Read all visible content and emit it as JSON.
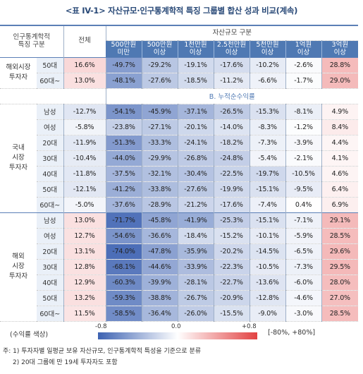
{
  "title": "<표 IV-1> 자산규모·인구통계학적 특징 그룹별 합산 성과 비교(계속)",
  "header": {
    "demo_group": "인구통계학적\n특징 구분",
    "total": "전체",
    "asset_group": "자산규모 구분",
    "cols": [
      "500만원\n미만",
      "500만원\n이상",
      "1천만원\n이상",
      "2.5천만원\n이상",
      "5천만원\n이상",
      "1억원\n이상",
      "3억원\n이상"
    ]
  },
  "top_group": {
    "label": "해외시장\n투자자",
    "rows": [
      {
        "age": "50대",
        "total": "16.6%",
        "vals": [
          "-49.7%",
          "-29.2%",
          "-19.1%",
          "-17.6%",
          "-10.2%",
          "-2.6%",
          "28.8%"
        ]
      },
      {
        "age": "60대~",
        "total": "13.0%",
        "vals": [
          "-48.1%",
          "-27.6%",
          "-18.5%",
          "-11.2%",
          "-6.6%",
          "-1.7%",
          "29.0%"
        ]
      }
    ]
  },
  "section_b_title": "B. 누적순수익률",
  "groups": [
    {
      "label": "국내\n시장\n투자자",
      "rows": [
        {
          "age": "남성",
          "total": "-12.7%",
          "vals": [
            "-54.1%",
            "-45.9%",
            "-37.1%",
            "-26.5%",
            "-15.3%",
            "-8.1%",
            "4.9%"
          ]
        },
        {
          "age": "여성",
          "total": "-5.8%",
          "vals": [
            "-23.8%",
            "-27.1%",
            "-20.1%",
            "-14.0%",
            "-8.3%",
            "-1.2%",
            "8.4%"
          ]
        },
        {
          "age": "20대",
          "total": "-11.9%",
          "vals": [
            "-51.3%",
            "-33.3%",
            "-24.1%",
            "-18.2%",
            "-7.3%",
            "-3.9%",
            "4.4%"
          ]
        },
        {
          "age": "30대",
          "total": "-10.4%",
          "vals": [
            "-44.0%",
            "-29.9%",
            "-26.8%",
            "-24.8%",
            "-5.4%",
            "-2.1%",
            "4.1%"
          ]
        },
        {
          "age": "40대",
          "total": "-11.8%",
          "vals": [
            "-37.5%",
            "-32.1%",
            "-30.4%",
            "-22.5%",
            "-19.7%",
            "-10.5%",
            "4.6%"
          ]
        },
        {
          "age": "50대",
          "total": "-12.1%",
          "vals": [
            "-41.2%",
            "-33.8%",
            "-27.6%",
            "-19.9%",
            "-15.1%",
            "-9.5%",
            "6.4%"
          ]
        },
        {
          "age": "60대~",
          "total": "-5.0%",
          "vals": [
            "-37.6%",
            "-28.9%",
            "-21.2%",
            "-17.6%",
            "-7.4%",
            "0.4%",
            "6.9%"
          ]
        }
      ]
    },
    {
      "label": "해외\n시장\n투자자",
      "rows": [
        {
          "age": "남성",
          "total": "13.0%",
          "vals": [
            "-71.7%",
            "-45.8%",
            "-41.9%",
            "-25.3%",
            "-15.1%",
            "-7.1%",
            "29.1%"
          ]
        },
        {
          "age": "여성",
          "total": "12.7%",
          "vals": [
            "-54.6%",
            "-36.6%",
            "-18.4%",
            "-15.2%",
            "-10.1%",
            "-5.9%",
            "28.5%"
          ]
        },
        {
          "age": "20대",
          "total": "13.1%",
          "vals": [
            "-74.0%",
            "-47.8%",
            "-35.9%",
            "-20.2%",
            "-14.5%",
            "-6.5%",
            "29.6%"
          ]
        },
        {
          "age": "30대",
          "total": "12.8%",
          "vals": [
            "-68.1%",
            "-44.6%",
            "-33.9%",
            "-22.3%",
            "-10.5%",
            "-7.3%",
            "29.5%"
          ]
        },
        {
          "age": "40대",
          "total": "12.9%",
          "vals": [
            "-60.3%",
            "-39.9%",
            "-28.1%",
            "-22.7%",
            "-13.6%",
            "-6.0%",
            "28.0%"
          ]
        },
        {
          "age": "50대",
          "total": "13.2%",
          "vals": [
            "-59.3%",
            "-38.8%",
            "-26.7%",
            "-20.9%",
            "-12.8%",
            "-4.6%",
            "27.0%"
          ]
        },
        {
          "age": "60대~",
          "total": "11.5%",
          "vals": [
            "-58.5%",
            "-36.4%",
            "-26.0%",
            "-15.5%",
            "-9.0%",
            "-3.0%",
            "28.5%"
          ]
        }
      ]
    }
  ],
  "legend": {
    "label": "(수익률 색상)",
    "min": "-0.8",
    "mid": "0.0",
    "max": "+0.8",
    "range": "[-80%, +80%]",
    "colors": {
      "neg": "#3d62b2",
      "zero": "#ffffff",
      "pos": "#e24242"
    }
  },
  "notes": [
    "주: 1) 투자자별 일평균 보유 자산규모, 인구통계학적 특성을 기준으로 분류",
    "2) 20대 그룹에 만 19세 투자자도 포함"
  ]
}
